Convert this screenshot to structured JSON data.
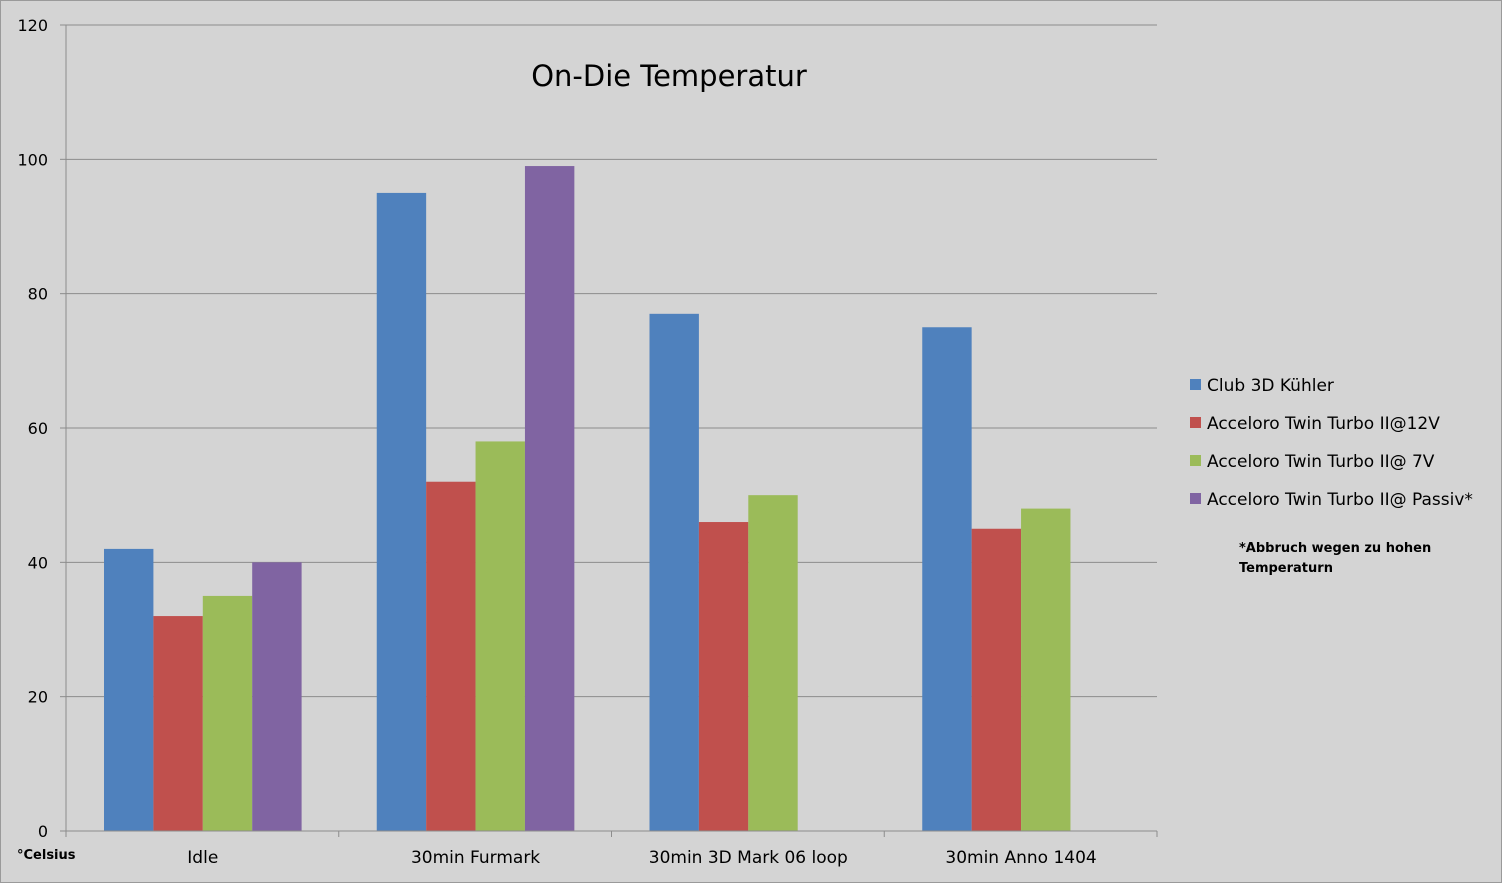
{
  "chart_data": {
    "type": "bar",
    "title": "On-Die Temperatur",
    "ylabel": "°Celsius",
    "xlabel": "",
    "categories": [
      "Idle",
      "30min Furmark",
      "30min 3D Mark 06 loop",
      "30min Anno 1404"
    ],
    "ylim": [
      0,
      120
    ],
    "yticks": [
      0,
      20,
      40,
      60,
      80,
      100,
      120
    ],
    "grid": true,
    "legend_position": "right",
    "series": [
      {
        "name": "Club 3D Kühler",
        "color": "#4f81bd",
        "values": [
          42,
          95,
          77,
          75
        ]
      },
      {
        "name": "Acceloro Twin Turbo II@12V",
        "color": "#c0504d",
        "values": [
          32,
          52,
          46,
          45
        ]
      },
      {
        "name": "Acceloro Twin Turbo II@ 7V",
        "color": "#9bbb59",
        "values": [
          35,
          58,
          50,
          48
        ]
      },
      {
        "name": "Acceloro Twin Turbo II@ Passiv*",
        "color": "#8064a2",
        "values": [
          40,
          99,
          null,
          null
        ]
      }
    ],
    "annotation": {
      "lines": [
        "*Abbruch wegen zu hohen",
        "Temperaturn"
      ]
    }
  }
}
